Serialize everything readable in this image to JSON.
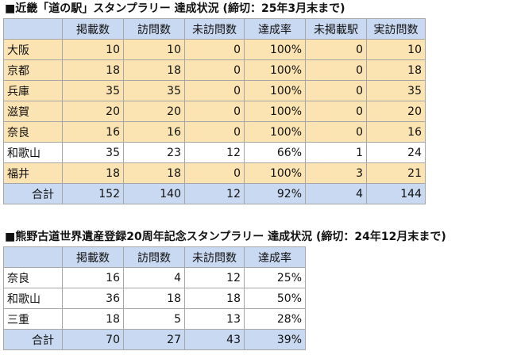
{
  "table1": {
    "title": "■近畿「道の駅」スタンプラリー 達成状況 (締切：25年3月末まで)",
    "headers": [
      "",
      "掲載数",
      "訪問数",
      "未訪問数",
      "達成率",
      "未掲載駅",
      "実訪問数"
    ],
    "rows": [
      {
        "name": "大阪",
        "cells": [
          "10",
          "10",
          "0",
          "100%",
          "0",
          "10"
        ],
        "status": "done"
      },
      {
        "name": "京都",
        "cells": [
          "18",
          "18",
          "0",
          "100%",
          "0",
          "18"
        ],
        "status": "done"
      },
      {
        "name": "兵庫",
        "cells": [
          "35",
          "35",
          "0",
          "100%",
          "0",
          "35"
        ],
        "status": "done"
      },
      {
        "name": "滋賀",
        "cells": [
          "20",
          "20",
          "0",
          "100%",
          "0",
          "20"
        ],
        "status": "done"
      },
      {
        "name": "奈良",
        "cells": [
          "16",
          "16",
          "0",
          "100%",
          "0",
          "16"
        ],
        "status": "done"
      },
      {
        "name": "和歌山",
        "cells": [
          "35",
          "23",
          "12",
          "66%",
          "1",
          "24"
        ],
        "status": "open"
      },
      {
        "name": "福井",
        "cells": [
          "18",
          "18",
          "0",
          "100%",
          "3",
          "21"
        ],
        "status": "done"
      }
    ],
    "total": {
      "name": "合計",
      "cells": [
        "152",
        "140",
        "12",
        "92%",
        "4",
        "144"
      ]
    }
  },
  "table2": {
    "title": "■熊野古道世界遺産登録20周年記念スタンプラリー 達成状況 (締切：24年12月末まで)",
    "headers": [
      "",
      "掲載数",
      "訪問数",
      "未訪問数",
      "達成率"
    ],
    "rows": [
      {
        "name": "奈良",
        "cells": [
          "16",
          "4",
          "12",
          "25%"
        ]
      },
      {
        "name": "和歌山",
        "cells": [
          "36",
          "18",
          "18",
          "50%"
        ]
      },
      {
        "name": "三重",
        "cells": [
          "18",
          "5",
          "13",
          "28%"
        ]
      }
    ],
    "total": {
      "name": "合計",
      "cells": [
        "70",
        "27",
        "43",
        "39%"
      ]
    }
  },
  "colors": {
    "header_bg": "#c9d9f1",
    "completed_row_bg": "#fbe4b2",
    "incomplete_row_bg": "#ffffff",
    "total_row_bg": "#c9d9f1",
    "border": "#a6a6a6"
  }
}
